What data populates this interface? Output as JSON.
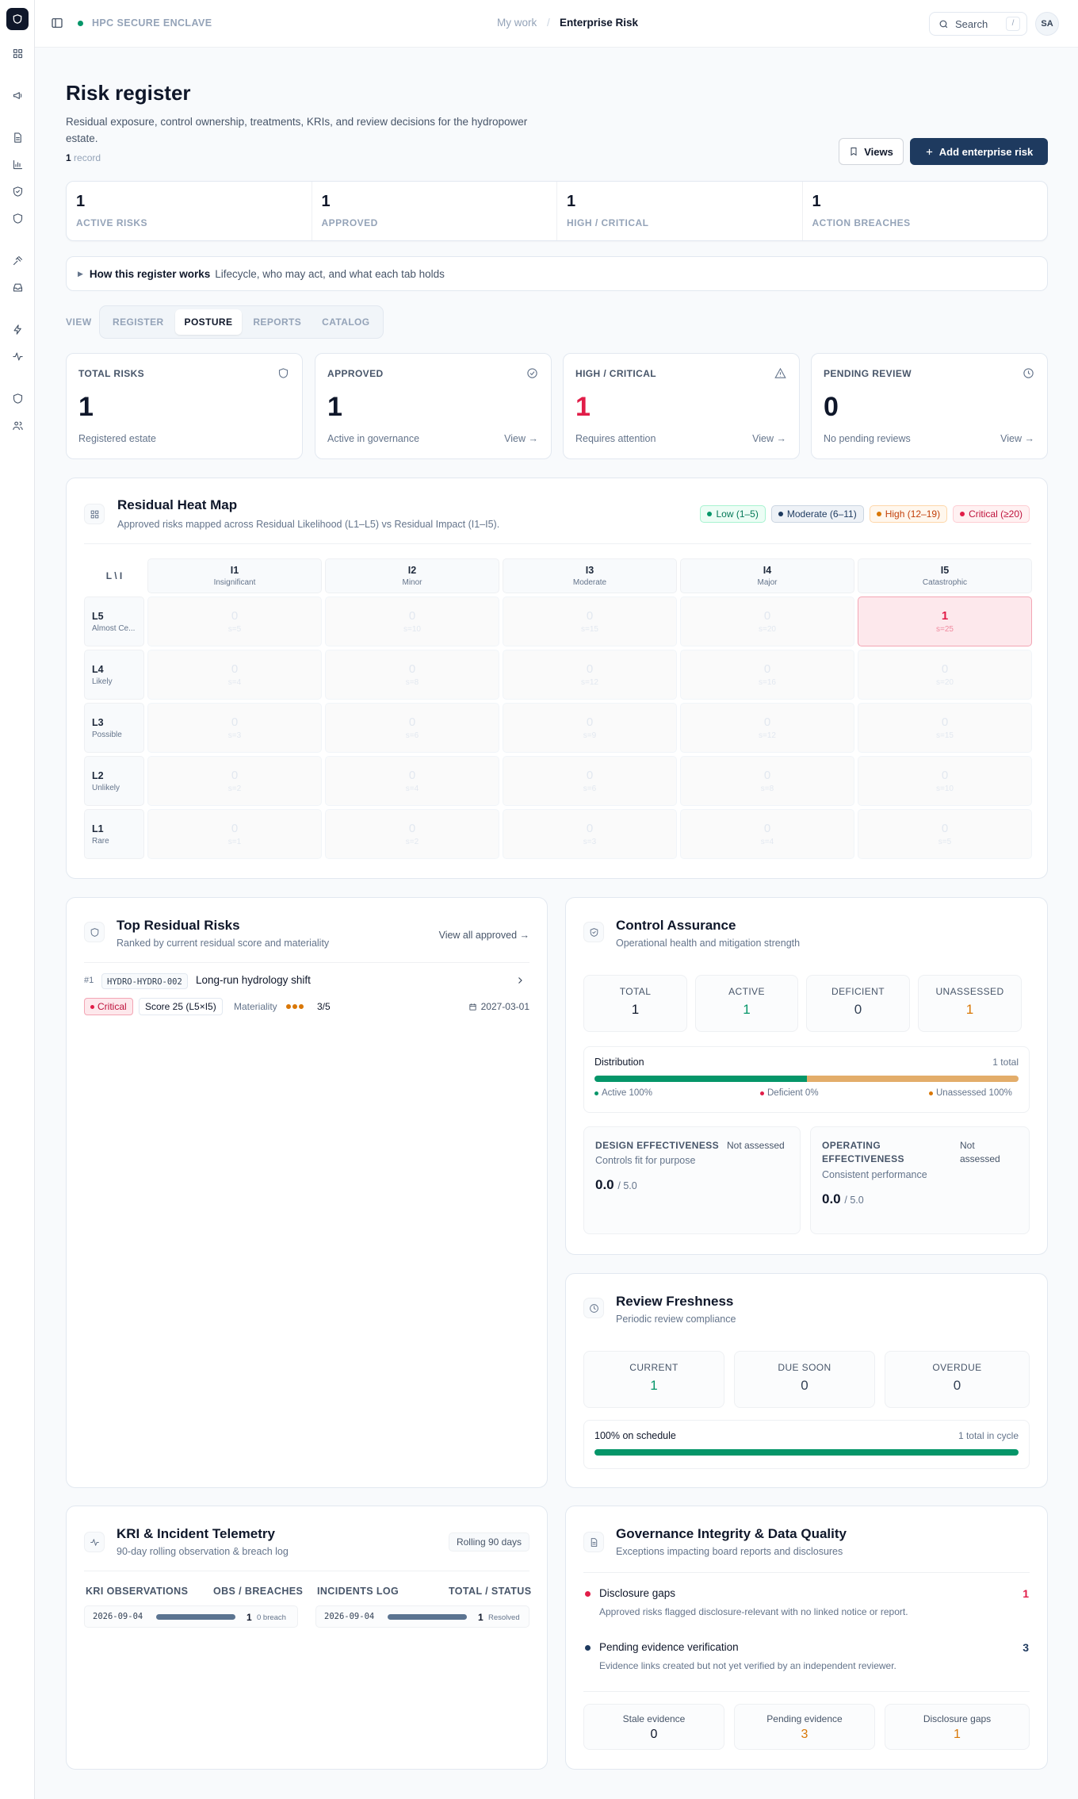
{
  "topbar": {
    "enclave": "HPC SECURE ENCLAVE",
    "crumb_1": "My work",
    "crumb_sep": "/",
    "crumb_2": "Enterprise Risk",
    "search_label": "Search",
    "search_kbd": "/",
    "avatar": "SA"
  },
  "header": {
    "title": "Risk register",
    "description": "Residual exposure, control ownership, treatments, KRIs, and review decisions for the hydropower estate.",
    "record_count": "1",
    "record_label": "record",
    "views_button": "Views",
    "add_button": "Add enterprise risk"
  },
  "summary": [
    {
      "value": "1",
      "label": "ACTIVE RISKS"
    },
    {
      "value": "1",
      "label": "APPROVED"
    },
    {
      "value": "1",
      "label": "HIGH / CRITICAL"
    },
    {
      "value": "1",
      "label": "ACTION BREACHES"
    }
  ],
  "howto": {
    "title": "How this register works",
    "text": "Lifecycle, who may act, and what each tab holds"
  },
  "view": {
    "label": "VIEW",
    "tabs": [
      "REGISTER",
      "POSTURE",
      "REPORTS",
      "CATALOG"
    ],
    "active": "POSTURE"
  },
  "metrics": [
    {
      "label": "TOTAL RISKS",
      "value": "1",
      "sub": "Registered estate",
      "link": "",
      "icon": "shield-icon",
      "color": "#0f172a"
    },
    {
      "label": "APPROVED",
      "value": "1",
      "sub": "Active in governance",
      "link": "View →",
      "icon": "check-circle-icon",
      "color": "#0f172a"
    },
    {
      "label": "HIGH / CRITICAL",
      "value": "1",
      "sub": "Requires attention",
      "link": "View →",
      "icon": "warning-icon",
      "color": "#e11d48"
    },
    {
      "label": "PENDING REVIEW",
      "value": "0",
      "sub": "No pending reviews",
      "link": "View →",
      "icon": "clock-icon",
      "color": "#0f172a"
    }
  ],
  "heatmap": {
    "title": "Residual Heat Map",
    "subtitle": "Approved risks mapped across Residual Likelihood (L1–L5) vs Residual Impact (I1–I5).",
    "legend": [
      {
        "label": "Low (1–5)",
        "dot": "#059669",
        "bg": "#ecfdf5",
        "border": "#a7f3d0",
        "text": "#047857"
      },
      {
        "label": "Moderate (6–11)",
        "dot": "#1e3a5f",
        "bg": "#eef2f7",
        "border": "#cbd5e1",
        "text": "#1e3a5f"
      },
      {
        "label": "High (12–19)",
        "dot": "#d97706",
        "bg": "#fff7ed",
        "border": "#fed7aa",
        "text": "#c2410c"
      },
      {
        "label": "Critical (≥20)",
        "dot": "#e11d48",
        "bg": "#fff1f2",
        "border": "#fecdd3",
        "text": "#be123c"
      }
    ],
    "corner": "L \\ I",
    "columns": [
      {
        "code": "I1",
        "name": "Insignificant"
      },
      {
        "code": "I2",
        "name": "Minor"
      },
      {
        "code": "I3",
        "name": "Moderate"
      },
      {
        "code": "I4",
        "name": "Major"
      },
      {
        "code": "I5",
        "name": "Catastrophic"
      }
    ],
    "rows": [
      {
        "code": "L5",
        "name": "Almost Ce...",
        "cells": [
          {
            "count": "0",
            "score": "s=5"
          },
          {
            "count": "0",
            "score": "s=10"
          },
          {
            "count": "0",
            "score": "s=15"
          },
          {
            "count": "0",
            "score": "s=20"
          },
          {
            "count": "1",
            "score": "s=25",
            "hot": true
          }
        ]
      },
      {
        "code": "L4",
        "name": "Likely",
        "cells": [
          {
            "count": "0",
            "score": "s=4"
          },
          {
            "count": "0",
            "score": "s=8"
          },
          {
            "count": "0",
            "score": "s=12"
          },
          {
            "count": "0",
            "score": "s=16"
          },
          {
            "count": "0",
            "score": "s=20"
          }
        ]
      },
      {
        "code": "L3",
        "name": "Possible",
        "cells": [
          {
            "count": "0",
            "score": "s=3"
          },
          {
            "count": "0",
            "score": "s=6"
          },
          {
            "count": "0",
            "score": "s=9"
          },
          {
            "count": "0",
            "score": "s=12"
          },
          {
            "count": "0",
            "score": "s=15"
          }
        ]
      },
      {
        "code": "L2",
        "name": "Unlikely",
        "cells": [
          {
            "count": "0",
            "score": "s=2"
          },
          {
            "count": "0",
            "score": "s=4"
          },
          {
            "count": "0",
            "score": "s=6"
          },
          {
            "count": "0",
            "score": "s=8"
          },
          {
            "count": "0",
            "score": "s=10"
          }
        ]
      },
      {
        "code": "L1",
        "name": "Rare",
        "cells": [
          {
            "count": "0",
            "score": "s=1"
          },
          {
            "count": "0",
            "score": "s=2"
          },
          {
            "count": "0",
            "score": "s=3"
          },
          {
            "count": "0",
            "score": "s=4"
          },
          {
            "count": "0",
            "score": "s=5"
          }
        ]
      }
    ]
  },
  "top_risks": {
    "title": "Top Residual Risks",
    "subtitle": "Ranked by current residual score and materiality",
    "view_all": "View all approved →",
    "item": {
      "rank": "#1",
      "id": "HYDRO-HYDRO-002",
      "name": "Long-run hydrology shift",
      "severity": "Critical",
      "score": "Score 25 (L5×I5)",
      "materiality_label": "Materiality",
      "materiality_value": "3/5",
      "date": "2027-03-01"
    }
  },
  "control": {
    "title": "Control Assurance",
    "subtitle": "Operational health and mitigation strength",
    "stats": [
      {
        "label": "TOTAL",
        "value": "1",
        "color": "#0f172a"
      },
      {
        "label": "ACTIVE",
        "value": "1",
        "color": "#059669"
      },
      {
        "label": "DEFICIENT",
        "value": "0",
        "color": "#334155"
      },
      {
        "label": "UNASSESSED",
        "value": "1",
        "color": "#d97706"
      }
    ],
    "distribution": {
      "title": "Distribution",
      "total": "1 total",
      "active_fraction": 0.5,
      "unassessed_fraction": 0.5,
      "legend_active": "Active 100%",
      "legend_deficient": "Deficient 0%",
      "legend_unassessed": "Unassessed 100%"
    },
    "design": {
      "title": "DESIGN EFFECTIVENESS",
      "status": "Not assessed",
      "sub": "Controls fit for purpose",
      "value": "0.0",
      "max": "/ 5.0"
    },
    "operating": {
      "title_1": "OPERATING",
      "title_2": "EFFECTIVENESS",
      "status_1": "Not",
      "status_2": "assessed",
      "sub": "Consistent performance",
      "value": "0.0",
      "max": "/ 5.0"
    }
  },
  "review": {
    "title": "Review Freshness",
    "subtitle": "Periodic review compliance",
    "stats": [
      {
        "label": "CURRENT",
        "value": "1",
        "color": "#059669"
      },
      {
        "label": "DUE SOON",
        "value": "0",
        "color": "#334155"
      },
      {
        "label": "OVERDUE",
        "value": "0",
        "color": "#334155"
      }
    ],
    "schedule_label": "100% on schedule",
    "cycle_label": "1 total in cycle",
    "fraction": 1.0
  },
  "kri": {
    "title": "KRI & Incident Telemetry",
    "subtitle": "90-day rolling observation & breach log",
    "rolling": "Rolling 90 days",
    "obs_header": "KRI OBSERVATIONS",
    "obs_header_right": "OBS / BREACHES",
    "inc_header": "INCIDENTS LOG",
    "inc_header_right": "TOTAL / STATUS",
    "obs_row": {
      "date": "2026-09-04",
      "count": "1",
      "status": "0 breach"
    },
    "inc_row": {
      "date": "2026-09-04",
      "count": "1",
      "status": "Resolved"
    }
  },
  "governance": {
    "title": "Governance Integrity & Data Quality",
    "subtitle": "Exceptions impacting board reports and disclosures",
    "items": [
      {
        "title": "Disclosure gaps",
        "desc": "Approved risks flagged disclosure-relevant with no linked notice or report.",
        "count": "1",
        "color": "#e11d48"
      },
      {
        "title": "Pending evidence verification",
        "desc": "Evidence links created but not yet verified by an independent reviewer.",
        "count": "3",
        "color": "#1e3a5f"
      }
    ],
    "stats": [
      {
        "label": "Stale evidence",
        "value": "0",
        "color": "#0f172a"
      },
      {
        "label": "Pending evidence",
        "value": "3",
        "color": "#d97706"
      },
      {
        "label": "Disclosure gaps",
        "value": "1",
        "color": "#d97706"
      }
    ]
  }
}
